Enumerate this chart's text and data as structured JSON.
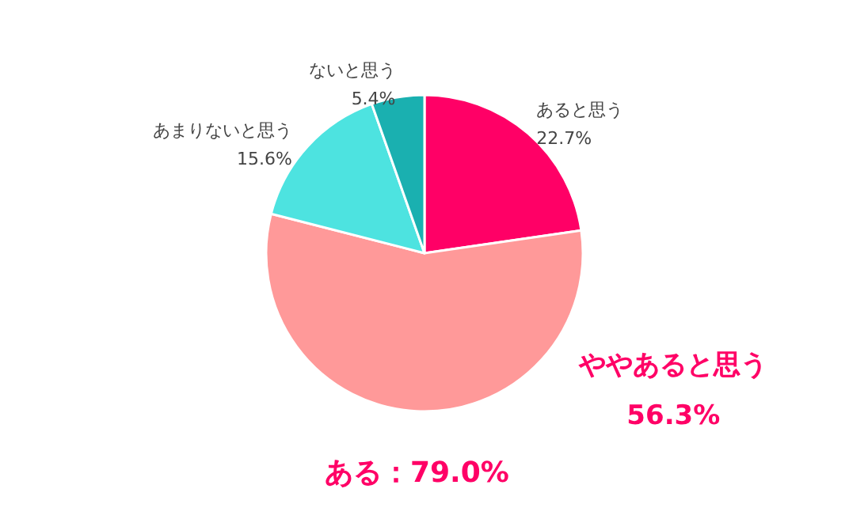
{
  "chart_data": {
    "type": "pie",
    "categories": [
      "あると思う",
      "ややあると思う",
      "あまりないと思う",
      "ないと思う"
    ],
    "values": [
      22.7,
      56.3,
      15.6,
      5.4
    ],
    "colors": [
      "#ff0066",
      "#ff9999",
      "#4de3e0",
      "#1ab0b0"
    ],
    "value_labels": [
      "22.7%",
      "56.3%",
      "15.6%",
      "5.4%"
    ],
    "legend": false,
    "annotations": [
      "ある：79.0%"
    ]
  }
}
